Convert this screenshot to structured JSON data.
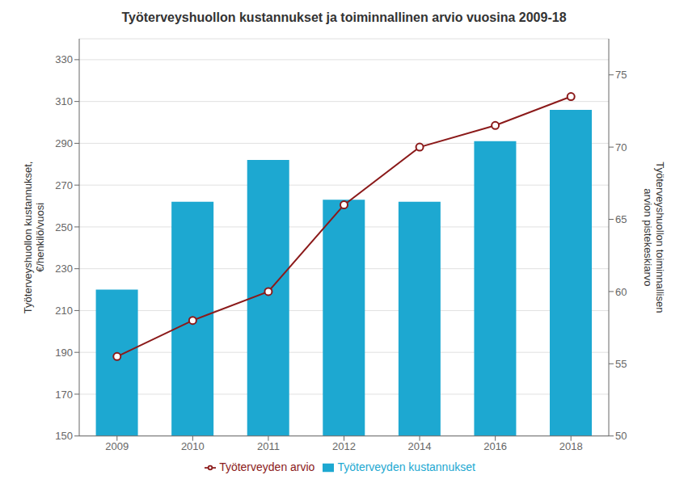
{
  "chart_data": {
    "type": "bar",
    "title": "Työterveyshuollon kustannukset ja toiminnallinen arvio vuosina 2009-18",
    "categories": [
      "2009",
      "2010",
      "2011",
      "2012",
      "2014",
      "2016",
      "2018"
    ],
    "series": [
      {
        "name": "Työterveyden kustannukset",
        "type": "bar",
        "color": "#1da8d1",
        "values": [
          220,
          262,
          282,
          263,
          262,
          291,
          306
        ]
      },
      {
        "name": "Työterveyden arvio",
        "type": "line",
        "color": "#8b1a1a",
        "marker": "circle",
        "axis": "y2",
        "values": [
          55.5,
          58.0,
          60.0,
          66.0,
          70.0,
          71.5,
          73.5
        ]
      }
    ],
    "y_label": "Työterveyshuollon kustannukset,\n€/henkilö/vuosi",
    "y2_label": "Työterveyshuollon toiminnallisen\narvion pistekeskiarvo",
    "ylim": [
      150,
      340
    ],
    "yticks": [
      150,
      170,
      190,
      210,
      230,
      250,
      270,
      290,
      310,
      330
    ],
    "y2lim": [
      50,
      77.5
    ],
    "y2ticks": [
      50,
      55,
      60,
      65,
      70,
      75
    ],
    "grid": true,
    "legend": "bottom"
  }
}
